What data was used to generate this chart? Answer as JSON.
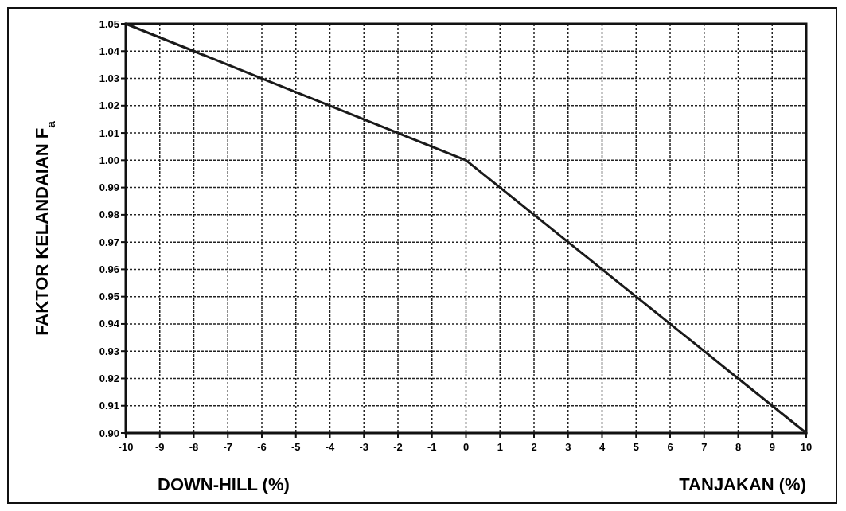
{
  "chart_data": {
    "type": "line",
    "xlabel": "DOWN-HILL (%)",
    "ylabel": "FAKTOR KELANDAIAN F$_{a}$",
    "annotations": [
      "TANJAKAN (%)"
    ],
    "x": [
      -10,
      -8,
      -6,
      -4,
      -2,
      0,
      1,
      2,
      3,
      4,
      5,
      6,
      7,
      8,
      9,
      10
    ],
    "series": [
      {
        "color": "#1a1a1a",
        "values": [
          1.05,
          1.04,
          1.03,
          1.02,
          1.01,
          1.0,
          0.99,
          0.98,
          0.97,
          0.96,
          0.95,
          0.94,
          0.93,
          0.92,
          0.91,
          0.9
        ]
      }
    ],
    "xlim": [
      -10,
      10
    ],
    "xticks": [
      -10,
      -9,
      -8,
      -7,
      -6,
      -5,
      -4,
      -3,
      -2,
      -1,
      0,
      1,
      2,
      3,
      4,
      5,
      6,
      7,
      8,
      9,
      10
    ],
    "ylim": [
      0.9,
      1.05
    ],
    "yticks": [
      {
        "value": 0.9,
        "label": "0.90"
      },
      0.91,
      0.92,
      0.93,
      0.94,
      0.95,
      0.96,
      0.97,
      0.98,
      0.99,
      {
        "value": 1.0,
        "label": "1.00"
      },
      1.01,
      1.02,
      1.03,
      1.04,
      1.05
    ],
    "grid": true,
    "marker": "none",
    "line_style": "solid"
  }
}
